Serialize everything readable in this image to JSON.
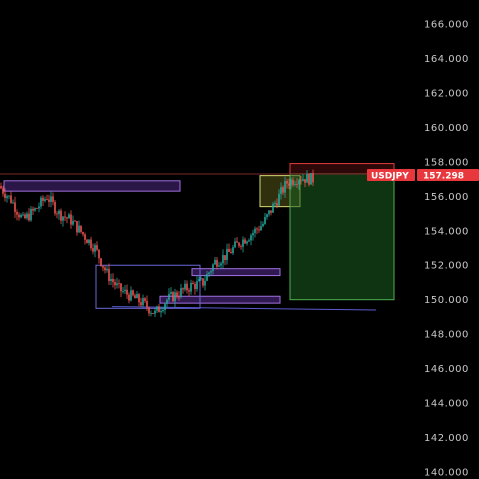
{
  "chart_data": {
    "type": "candlestick",
    "symbol": "USDJPY",
    "last_price": "157.298",
    "ylim": [
      140,
      167
    ],
    "y_ticks": [
      "166.000",
      "164.000",
      "162.000",
      "160.000",
      "158.000",
      "156.000",
      "154.000",
      "152.000",
      "150.000",
      "148.000",
      "146.000",
      "144.000",
      "142.000",
      "140.000"
    ],
    "y_tick_values": [
      166,
      164,
      162,
      160,
      158,
      156,
      154,
      152,
      150,
      148,
      146,
      144,
      142,
      140
    ],
    "x_count": 100,
    "price_path": [
      [
        0,
        156.6
      ],
      [
        3,
        155.8
      ],
      [
        6,
        154.6
      ],
      [
        9,
        155.2
      ],
      [
        12,
        156.0
      ],
      [
        15,
        155.0
      ],
      [
        18,
        154.6
      ],
      [
        21,
        153.8
      ],
      [
        24,
        153.0
      ],
      [
        27,
        151.5
      ],
      [
        30,
        150.6
      ],
      [
        33,
        150.2
      ],
      [
        36,
        149.8
      ],
      [
        39,
        149.2
      ],
      [
        42,
        150.0
      ],
      [
        45,
        150.4
      ],
      [
        48,
        150.8
      ],
      [
        51,
        151.0
      ],
      [
        54,
        152.2
      ],
      [
        57,
        152.6
      ],
      [
        60,
        153.3
      ],
      [
        63,
        153.8
      ],
      [
        66,
        154.4
      ],
      [
        69,
        155.6
      ],
      [
        72,
        156.8
      ],
      [
        75,
        157.1
      ],
      [
        78,
        157.0
      ]
    ],
    "colors": {
      "up": "#26a69a",
      "down": "#ef5350",
      "price_line": "#ff4d4d",
      "tag_bg": "#e8383d"
    },
    "zones": [
      {
        "name": "supply-zone-top",
        "x0": 1,
        "x1": 45,
        "y0": 156.3,
        "y1": 156.9,
        "stroke": "#a070e0",
        "fill": "#6030a0",
        "fill_opacity": 0.45
      },
      {
        "name": "demand-zone-mid",
        "x0": 48,
        "x1": 70,
        "y0": 151.4,
        "y1": 151.8,
        "stroke": "#a070e0",
        "fill": "#6030a0",
        "fill_opacity": 0.5
      },
      {
        "name": "demand-zone-low",
        "x0": 40,
        "x1": 70,
        "y0": 149.8,
        "y1": 150.2,
        "stroke": "#a070e0",
        "fill": "#6030a0",
        "fill_opacity": 0.5
      },
      {
        "name": "range-box",
        "x0": 24,
        "x1": 50,
        "y0": 149.5,
        "y1": 152.0,
        "stroke": "#6a6ad8",
        "fill": "none",
        "fill_opacity": 0
      },
      {
        "name": "entry-box",
        "x0": 65,
        "x1": 75,
        "y0": 155.4,
        "y1": 157.2,
        "stroke": "#d8d870",
        "fill": "#6a6a20",
        "fill_opacity": 0.45
      },
      {
        "name": "stop-loss-zone",
        "x0": 72.5,
        "x1": 98.5,
        "y0": 157.3,
        "y1": 157.9,
        "stroke": "#e03c3c",
        "fill": "#801818",
        "fill_opacity": 0.35
      },
      {
        "name": "take-profit-zone",
        "x0": 72.5,
        "x1": 98.5,
        "y0": 150.0,
        "y1": 157.3,
        "stroke": "#4caf50",
        "fill": "#1b5e20",
        "fill_opacity": 0.55
      }
    ],
    "lines": [
      {
        "name": "support-line",
        "x0": 28,
        "x1": 94,
        "y0": 149.6,
        "y1": 149.4,
        "stroke": "#5a5ad0"
      },
      {
        "name": "price-line",
        "x0": 0,
        "x1": 100,
        "y0": 157.298,
        "y1": 157.298,
        "stroke": "#7a2a2a"
      }
    ]
  }
}
